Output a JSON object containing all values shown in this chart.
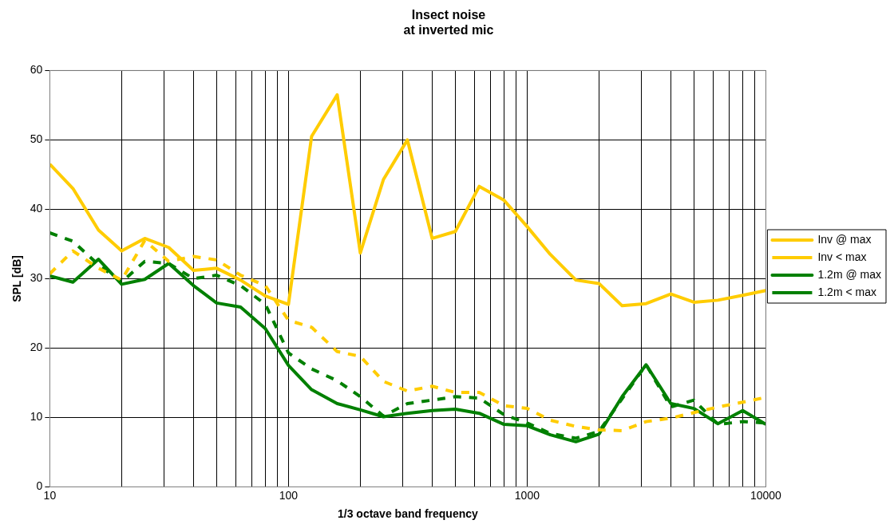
{
  "chart_data": {
    "type": "line",
    "title": "Insect noise\nat inverted mic",
    "xlabel": "1/3 octave band frequency",
    "ylabel": "SPL [dB]",
    "x": [
      10,
      12.5,
      16,
      20,
      25,
      31.5,
      40,
      50,
      63,
      80,
      100,
      125,
      160,
      200,
      250,
      315,
      400,
      500,
      630,
      800,
      1000,
      1250,
      1600,
      2000,
      2500,
      3150,
      4000,
      5000,
      6300,
      8000,
      10000
    ],
    "series": [
      {
        "name": "Inv @ max",
        "color": "#ffcc00",
        "line_style": "solid",
        "values": [
          46.5,
          43,
          37,
          34,
          35.8,
          34.5,
          31.2,
          31.5,
          29.8,
          27.5,
          26.3,
          50.5,
          56.5,
          33.7,
          44.3,
          50,
          35.8,
          36.8,
          43.3,
          41.3,
          37.5,
          33.5,
          29.8,
          29.3,
          26.1,
          26.4,
          27.8,
          26.6,
          26.9,
          27.6,
          28.3
        ]
      },
      {
        "name": "Inv < max",
        "color": "#ffcc00",
        "line_style": "dashed",
        "values": [
          30.7,
          34,
          31.5,
          29.8,
          35.5,
          32.5,
          33.2,
          32.7,
          30.5,
          29,
          24,
          23,
          19.5,
          18.8,
          15.2,
          13.8,
          14.5,
          13.6,
          13.6,
          11.7,
          11.3,
          9.6,
          8.7,
          8.2,
          8.1,
          9.4,
          9.9,
          10.7,
          11.5,
          12.2,
          12.9
        ]
      },
      {
        "name": "1.2m @ max",
        "color": "#008000",
        "line_style": "solid",
        "values": [
          30.4,
          29.5,
          32.8,
          29.2,
          29.9,
          32.2,
          29,
          26.5,
          25.9,
          22.8,
          17.5,
          14,
          12,
          11.1,
          10.1,
          10.6,
          11,
          11.2,
          10.6,
          9,
          8.8,
          7.5,
          6.5,
          7.6,
          13,
          17.6,
          12,
          11.3,
          9.1,
          11,
          9
        ]
      },
      {
        "name": "1.2m < max",
        "color": "#008000",
        "line_style": "dashed",
        "values": [
          36.6,
          35.4,
          32,
          29.5,
          32.5,
          32.2,
          30,
          30.5,
          29,
          26.3,
          19.3,
          17,
          15.3,
          13,
          10.2,
          12,
          12.5,
          13,
          12.8,
          10.4,
          9.2,
          7.7,
          7,
          8,
          12.7,
          17.6,
          11.5,
          12.5,
          9,
          9.4,
          9.2
        ]
      }
    ],
    "log": "x",
    "xlim": [
      10,
      10000
    ],
    "xticks": [
      10,
      {
        "value": 20,
        "label": null
      },
      {
        "value": 30,
        "label": null
      },
      {
        "value": 40,
        "label": null
      },
      {
        "value": 50,
        "label": null
      },
      {
        "value": 60,
        "label": null
      },
      {
        "value": 70,
        "label": null
      },
      {
        "value": 80,
        "label": null
      },
      {
        "value": 90,
        "label": null
      },
      100,
      {
        "value": 200,
        "label": null
      },
      {
        "value": 300,
        "label": null
      },
      {
        "value": 400,
        "label": null
      },
      {
        "value": 500,
        "label": null
      },
      {
        "value": 600,
        "label": null
      },
      {
        "value": 700,
        "label": null
      },
      {
        "value": 800,
        "label": null
      },
      {
        "value": 900,
        "label": null
      },
      1000,
      {
        "value": 2000,
        "label": null
      },
      {
        "value": 3000,
        "label": null
      },
      {
        "value": 4000,
        "label": null
      },
      {
        "value": 5000,
        "label": null
      },
      {
        "value": 6000,
        "label": null
      },
      {
        "value": 7000,
        "label": null
      },
      {
        "value": 8000,
        "label": null
      },
      {
        "value": 9000,
        "label": null
      },
      10000
    ],
    "ylim": [
      0,
      60
    ],
    "yticks": [
      0,
      10,
      20,
      30,
      40,
      50,
      60
    ],
    "grid": true,
    "legend": "right",
    "marker": "none"
  }
}
